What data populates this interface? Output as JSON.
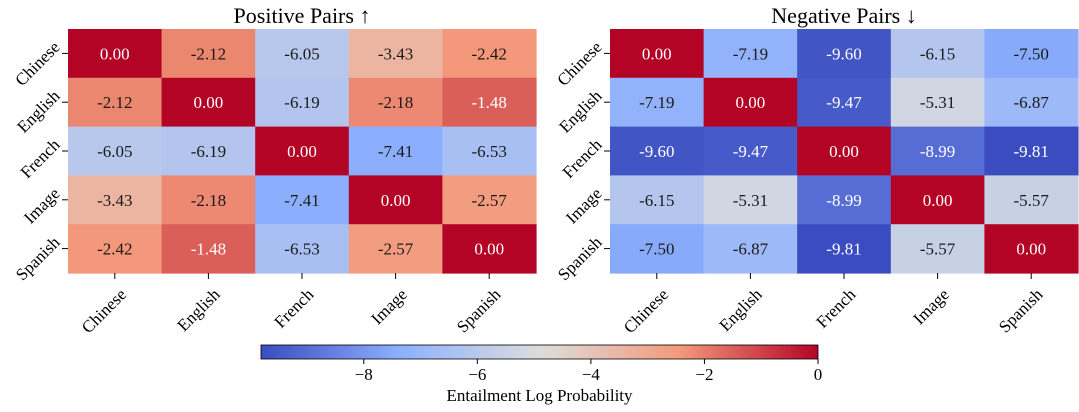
{
  "chart_data": [
    {
      "type": "heatmap",
      "title": "Positive Pairs ↑",
      "rows": [
        "Chinese",
        "English",
        "French",
        "Image",
        "Spanish"
      ],
      "columns": [
        "Chinese",
        "English",
        "French",
        "Image",
        "Spanish"
      ],
      "values": [
        [
          0.0,
          -2.12,
          -6.05,
          -3.43,
          -2.42
        ],
        [
          -2.12,
          0.0,
          -6.19,
          -2.18,
          -1.48
        ],
        [
          -6.05,
          -6.19,
          0.0,
          -7.41,
          -6.53
        ],
        [
          -3.43,
          -2.18,
          -7.41,
          0.0,
          -2.57
        ],
        [
          -2.42,
          -1.48,
          -6.53,
          -2.57,
          0.0
        ]
      ]
    },
    {
      "type": "heatmap",
      "title": "Negative Pairs ↓",
      "rows": [
        "Chinese",
        "English",
        "French",
        "Image",
        "Spanish"
      ],
      "columns": [
        "Chinese",
        "English",
        "French",
        "Image",
        "Spanish"
      ],
      "values": [
        [
          0.0,
          -7.19,
          -9.6,
          -6.15,
          -7.5
        ],
        [
          -7.19,
          0.0,
          -9.47,
          -5.31,
          -6.87
        ],
        [
          -9.6,
          -9.47,
          0.0,
          -8.99,
          -9.81
        ],
        [
          -6.15,
          -5.31,
          -8.99,
          0.0,
          -5.57
        ],
        [
          -7.5,
          -6.87,
          -9.81,
          -5.57,
          0.0
        ]
      ]
    }
  ],
  "colorbar": {
    "label": "Entailment Log Probability",
    "range": [
      -9.81,
      0
    ],
    "ticks": [
      -8,
      -6,
      -4,
      -2,
      0
    ],
    "tick_labels": [
      "−8",
      "−6",
      "−4",
      "−2",
      "0"
    ],
    "colormap": "coolwarm"
  }
}
